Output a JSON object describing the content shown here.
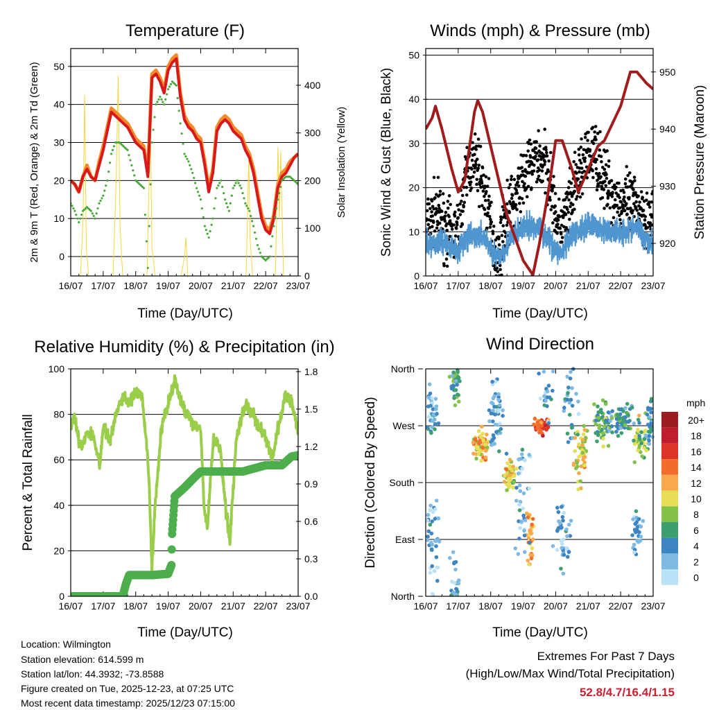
{
  "x_ticks": [
    "16/07",
    "17/07",
    "18/07",
    "19/07",
    "20/07",
    "21/07",
    "22/07",
    "23/07"
  ],
  "x_label": "Time (Day/UTC)",
  "info": {
    "location": "Location: Wilmington",
    "elevation": "Station elevation: 614.599 m",
    "latlon": "Station lat/lon: 44.3932; -73.8588",
    "created": "Figure created on Tue, 2025-12-23, at 07:25 UTC",
    "recent": "Most recent data timestamp: 2025/12/23 07:15:00"
  },
  "extremes": {
    "title": "Extremes For Past 7 Days",
    "subtitle": "(High/Low/Max Wind/Total Precipitation)",
    "values": "52.8/4.7/16.4/1.15",
    "color": "#c8202f"
  },
  "chart_data": [
    {
      "type": "line",
      "title": "Temperature (F)",
      "ylabel": "2m & 9m T (Red, Orange) & 2m Td (Green)",
      "y2label": "Solar Insolation (Yellow)",
      "xlim": [
        0,
        7
      ],
      "ylim": [
        -5.1,
        54.7
      ],
      "y2lim": [
        0,
        477
      ],
      "yticks": [
        0,
        10,
        20,
        30,
        40,
        50
      ],
      "y2ticks": [
        0,
        100,
        200,
        300,
        400
      ],
      "t_step_days": 0.125,
      "series": [
        {
          "name": "9m T",
          "color": "#f58a2a",
          "values": [
            20,
            19,
            17,
            21,
            24,
            21,
            20,
            25,
            29,
            34,
            39,
            38,
            37,
            36,
            35,
            33,
            31,
            30,
            29,
            22,
            48,
            49,
            47,
            44,
            50,
            52,
            53,
            43,
            37,
            35,
            34,
            32,
            31,
            25,
            18,
            23,
            34,
            36,
            37,
            36,
            34,
            33,
            32,
            29,
            27,
            23,
            17,
            11,
            8,
            7,
            11,
            19,
            22,
            23,
            25,
            26,
            27
          ]
        },
        {
          "name": "2m T",
          "color": "#d7191c",
          "values": [
            20,
            19,
            17,
            21,
            23,
            21,
            20,
            24,
            28,
            33,
            38,
            37,
            36,
            35,
            34,
            32,
            30,
            29,
            28,
            21,
            47,
            48,
            46,
            43,
            49,
            51,
            52,
            42,
            36,
            34,
            33,
            31,
            30,
            24,
            17,
            22,
            33,
            35,
            36,
            35,
            33,
            32,
            31,
            28,
            26,
            22,
            16,
            10,
            7,
            6,
            10,
            18,
            21,
            22,
            24,
            26,
            27
          ]
        },
        {
          "name": "2m Td",
          "color": "#4aa83a",
          "values": [
            14,
            12,
            9,
            12,
            13,
            12,
            10,
            14,
            16,
            20,
            27,
            30,
            30,
            29,
            28,
            24,
            20,
            19,
            18,
            -3,
            30,
            40,
            42,
            40,
            44,
            46,
            45,
            35,
            27,
            25,
            22,
            18,
            15,
            8,
            5,
            10,
            18,
            20,
            15,
            12,
            18,
            20,
            18,
            14,
            12,
            8,
            3,
            0,
            -1,
            0,
            8,
            15,
            20,
            21,
            21,
            20,
            19
          ]
        }
      ],
      "solar": {
        "name": "Solar Insolation",
        "color": "#f5d63c",
        "points": [
          [
            0,
            0
          ],
          [
            0.3,
            0
          ],
          [
            0.38,
            120
          ],
          [
            0.43,
            380
          ],
          [
            0.48,
            60
          ],
          [
            0.55,
            0
          ],
          [
            1.3,
            0
          ],
          [
            1.4,
            200
          ],
          [
            1.46,
            420
          ],
          [
            1.52,
            100
          ],
          [
            1.6,
            0
          ],
          [
            2.35,
            0
          ],
          [
            2.45,
            330
          ],
          [
            2.5,
            60
          ],
          [
            2.6,
            0
          ],
          [
            3.4,
            0
          ],
          [
            3.5,
            40
          ],
          [
            3.55,
            80
          ],
          [
            3.6,
            0
          ],
          [
            5.4,
            0
          ],
          [
            5.48,
            250
          ],
          [
            5.52,
            80
          ],
          [
            5.6,
            0
          ],
          [
            6.3,
            0
          ],
          [
            6.38,
            270
          ],
          [
            6.42,
            120
          ],
          [
            6.46,
            260
          ],
          [
            6.55,
            0
          ],
          [
            7,
            0
          ]
        ]
      }
    },
    {
      "type": "scatter",
      "title": "Winds (mph) & Pressure (mb)",
      "ylabel": "Sonic Wind & Gust (Blue, Black)",
      "y2label": "Station Pressure (Maroon)",
      "xlim": [
        0,
        7
      ],
      "ylim": [
        0,
        51.5
      ],
      "y2lim": [
        914.3,
        954.1
      ],
      "yticks": [
        0,
        10,
        20,
        30,
        40,
        50
      ],
      "y2ticks": [
        920,
        930,
        940,
        950
      ],
      "wind": {
        "name": "Sonic Wind",
        "color": "#4f95d0",
        "points": [
          [
            0,
            7
          ],
          [
            0.5,
            8
          ],
          [
            1.0,
            6
          ],
          [
            1.2,
            8
          ],
          [
            1.5,
            9
          ],
          [
            1.8,
            9
          ],
          [
            2.0,
            6
          ],
          [
            2.2,
            4
          ],
          [
            2.4,
            6
          ],
          [
            2.7,
            9
          ],
          [
            3.0,
            11
          ],
          [
            3.5,
            11
          ],
          [
            4.0,
            6
          ],
          [
            4.2,
            5
          ],
          [
            4.5,
            9
          ],
          [
            5.0,
            12
          ],
          [
            5.5,
            10
          ],
          [
            6.0,
            10
          ],
          [
            6.5,
            11
          ],
          [
            7.0,
            7
          ]
        ]
      },
      "gust": {
        "name": "Gust",
        "color": "#000000",
        "points": [
          [
            0,
            10
          ],
          [
            0.3,
            15
          ],
          [
            0.5,
            12
          ],
          [
            0.8,
            9
          ],
          [
            1.0,
            10
          ],
          [
            1.3,
            25
          ],
          [
            1.6,
            25
          ],
          [
            1.9,
            16
          ],
          [
            2.2,
            3
          ],
          [
            2.4,
            12
          ],
          [
            2.8,
            18
          ],
          [
            3.0,
            22
          ],
          [
            3.4,
            27
          ],
          [
            3.8,
            24
          ],
          [
            4.1,
            10
          ],
          [
            4.4,
            15
          ],
          [
            4.8,
            25
          ],
          [
            5.2,
            28
          ],
          [
            5.6,
            20
          ],
          [
            6.0,
            16
          ],
          [
            6.5,
            16
          ],
          [
            7.0,
            12
          ]
        ]
      },
      "pressure": {
        "name": "Station Pressure",
        "color": "#a01c1c",
        "points": [
          [
            0,
            940
          ],
          [
            0.2,
            942
          ],
          [
            0.3,
            944
          ],
          [
            0.5,
            940
          ],
          [
            0.8,
            933
          ],
          [
            1.0,
            929
          ],
          [
            1.2,
            931
          ],
          [
            1.5,
            943
          ],
          [
            1.6,
            945
          ],
          [
            1.75,
            943
          ],
          [
            2.0,
            937
          ],
          [
            2.5,
            925
          ],
          [
            3.0,
            917
          ],
          [
            3.3,
            914.5
          ],
          [
            3.5,
            920
          ],
          [
            3.8,
            930
          ],
          [
            4.0,
            938
          ],
          [
            4.2,
            938
          ],
          [
            4.5,
            933
          ],
          [
            4.7,
            929
          ],
          [
            5.0,
            933
          ],
          [
            5.3,
            937
          ],
          [
            5.5,
            938
          ],
          [
            6.0,
            944
          ],
          [
            6.3,
            950
          ],
          [
            6.5,
            950
          ],
          [
            6.8,
            948
          ],
          [
            7.0,
            947
          ]
        ]
      }
    },
    {
      "type": "line",
      "title": "Relative Humidity (%) & Precipitation (in)",
      "ylabel": "Percent & Total Rainfall",
      "xlim": [
        0,
        7
      ],
      "ylim": [
        0,
        100
      ],
      "y2lim": [
        0,
        1.822
      ],
      "yticks": [
        0,
        20,
        40,
        60,
        80,
        100
      ],
      "y2ticks": [
        "0.0",
        "0.3",
        "0.6",
        "0.9",
        "1.2",
        "1.5",
        "1.8"
      ],
      "rh": {
        "name": "Relative Humidity",
        "color": "#9acd4a",
        "points": [
          [
            0,
            74
          ],
          [
            0.1,
            80
          ],
          [
            0.3,
            65
          ],
          [
            0.5,
            72
          ],
          [
            0.7,
            70
          ],
          [
            0.9,
            58
          ],
          [
            1.0,
            75
          ],
          [
            1.2,
            68
          ],
          [
            1.4,
            80
          ],
          [
            1.6,
            88
          ],
          [
            1.8,
            85
          ],
          [
            2.0,
            90
          ],
          [
            2.2,
            87
          ],
          [
            2.4,
            55
          ],
          [
            2.5,
            12
          ],
          [
            2.6,
            40
          ],
          [
            2.8,
            75
          ],
          [
            3.0,
            85
          ],
          [
            3.2,
            95
          ],
          [
            3.4,
            85
          ],
          [
            3.6,
            80
          ],
          [
            3.8,
            75
          ],
          [
            4.0,
            75
          ],
          [
            4.1,
            40
          ],
          [
            4.2,
            30
          ],
          [
            4.4,
            70
          ],
          [
            4.6,
            65
          ],
          [
            4.8,
            35
          ],
          [
            4.9,
            25
          ],
          [
            5.1,
            70
          ],
          [
            5.4,
            85
          ],
          [
            5.6,
            80
          ],
          [
            5.8,
            75
          ],
          [
            6.0,
            70
          ],
          [
            6.2,
            60
          ],
          [
            6.4,
            75
          ],
          [
            6.6,
            88
          ],
          [
            6.8,
            85
          ],
          [
            7.0,
            73
          ]
        ]
      },
      "precip": {
        "name": "Total Rainfall",
        "color": "#4cae4c",
        "points": [
          [
            0,
            0
          ],
          [
            1.6,
            0
          ],
          [
            1.7,
            0.1
          ],
          [
            1.8,
            0.17
          ],
          [
            2.5,
            0.17
          ],
          [
            3.0,
            0.18
          ],
          [
            3.1,
            0.25
          ],
          [
            3.12,
            0.5
          ],
          [
            3.2,
            0.8
          ],
          [
            3.5,
            0.87
          ],
          [
            3.8,
            0.95
          ],
          [
            4.0,
            1.0
          ],
          [
            5.3,
            1.0
          ],
          [
            6.0,
            1.05
          ],
          [
            6.5,
            1.05
          ],
          [
            6.8,
            1.12
          ],
          [
            7.0,
            1.13
          ]
        ]
      }
    },
    {
      "type": "scatter",
      "title": "Wind Direction",
      "ylabel": "Direction (Colored By Speed)",
      "xlim": [
        0,
        7
      ],
      "ylim": [
        0,
        360
      ],
      "ytick_labels": [
        {
          "v": 0,
          "label": "North"
        },
        {
          "v": 90,
          "label": "East"
        },
        {
          "v": 180,
          "label": "South"
        },
        {
          "v": 270,
          "label": "West"
        },
        {
          "v": 360,
          "label": "North"
        }
      ],
      "colorbar": {
        "unit": "mph",
        "levels": [
          {
            "label": "20+",
            "color": "#9b1c1f"
          },
          {
            "label": "18",
            "color": "#bf1e2e"
          },
          {
            "label": "16",
            "color": "#dd3329"
          },
          {
            "label": "14",
            "color": "#f26c2c"
          },
          {
            "label": "12",
            "color": "#f9a94b"
          },
          {
            "label": "10",
            "color": "#e6df56"
          },
          {
            "label": "8",
            "color": "#84c14a"
          },
          {
            "label": "6",
            "color": "#3e9f6e"
          },
          {
            "label": "4",
            "color": "#3d85c2"
          },
          {
            "label": "2",
            "color": "#7eb9e3"
          },
          {
            "label": "0",
            "color": "#b9e2f6"
          }
        ]
      },
      "clusters_note": "t_center_days, t_spread, dir_deg, dir_spread, speed_mph, count",
      "clusters": [
        [
          0.2,
          0.2,
          290,
          30,
          3,
          40
        ],
        [
          0.2,
          0.2,
          100,
          60,
          2,
          40
        ],
        [
          0.9,
          0.15,
          340,
          25,
          6,
          40
        ],
        [
          0.9,
          0.2,
          30,
          40,
          3,
          20
        ],
        [
          1.7,
          0.2,
          240,
          20,
          11,
          60
        ],
        [
          2.2,
          0.2,
          290,
          50,
          3,
          50
        ],
        [
          2.6,
          0.15,
          190,
          20,
          10,
          50
        ],
        [
          3.2,
          0.1,
          100,
          40,
          12,
          30
        ],
        [
          3.0,
          0.2,
          150,
          100,
          2,
          40
        ],
        [
          3.6,
          0.2,
          270,
          10,
          15,
          50
        ],
        [
          3.7,
          0.2,
          320,
          40,
          3,
          20
        ],
        [
          4.2,
          0.2,
          90,
          40,
          3,
          40
        ],
        [
          4.5,
          0.2,
          300,
          50,
          3,
          30
        ],
        [
          4.8,
          0.2,
          230,
          40,
          10,
          50
        ],
        [
          5.4,
          0.2,
          270,
          30,
          7,
          50
        ],
        [
          6.0,
          0.3,
          280,
          20,
          5,
          60
        ],
        [
          6.6,
          0.2,
          250,
          30,
          8,
          40
        ],
        [
          6.5,
          0.15,
          90,
          30,
          3,
          30
        ],
        [
          6.9,
          0.1,
          270,
          30,
          4,
          30
        ]
      ]
    }
  ]
}
